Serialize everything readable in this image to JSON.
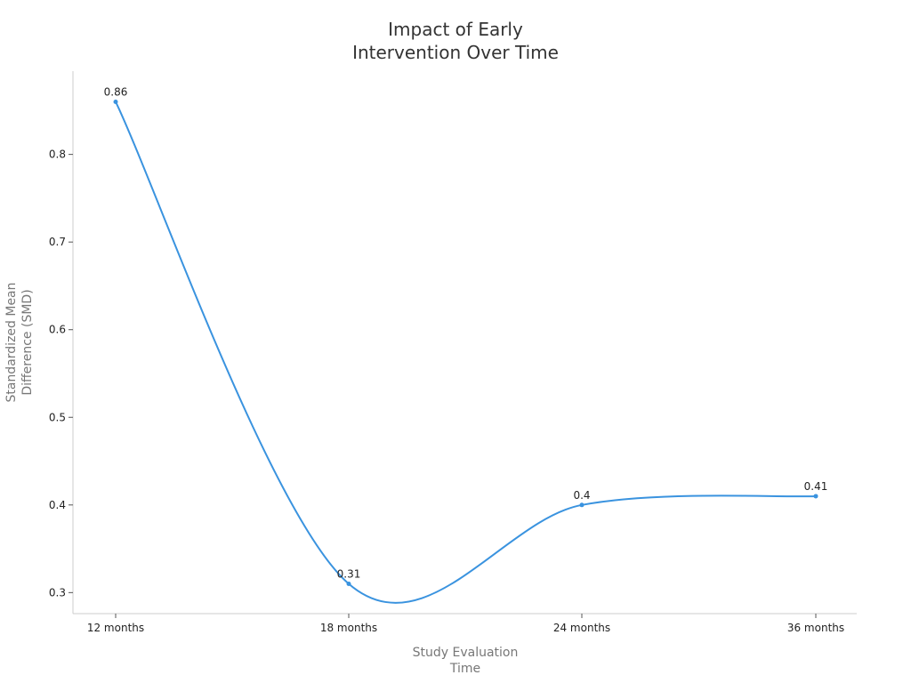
{
  "chart_data": {
    "type": "line",
    "title": [
      "Impact of Early",
      "Intervention Over Time"
    ],
    "xlabel": [
      "Study Evaluation",
      "Time"
    ],
    "ylabel": [
      "Standardized Mean",
      "Difference (SMD)"
    ],
    "categories": [
      "12 months",
      "18 months",
      "24 months",
      "36 months"
    ],
    "series": [
      {
        "values": [
          0.86,
          0.31,
          0.4,
          0.41
        ],
        "data_labels": [
          "0.86",
          "0.31",
          "0.4",
          "0.41"
        ],
        "color": "#3a93df"
      }
    ],
    "ylim": [
      0.276,
      0.895
    ],
    "yticks": [
      0.3,
      0.4,
      0.5,
      0.6,
      0.7,
      0.8
    ],
    "ytick_labels": [
      "0.3",
      "0.4",
      "0.5",
      "0.6",
      "0.7",
      "0.8"
    ],
    "smooth": true,
    "grid": false,
    "legend": "none",
    "axis_color": "#cccccc"
  }
}
